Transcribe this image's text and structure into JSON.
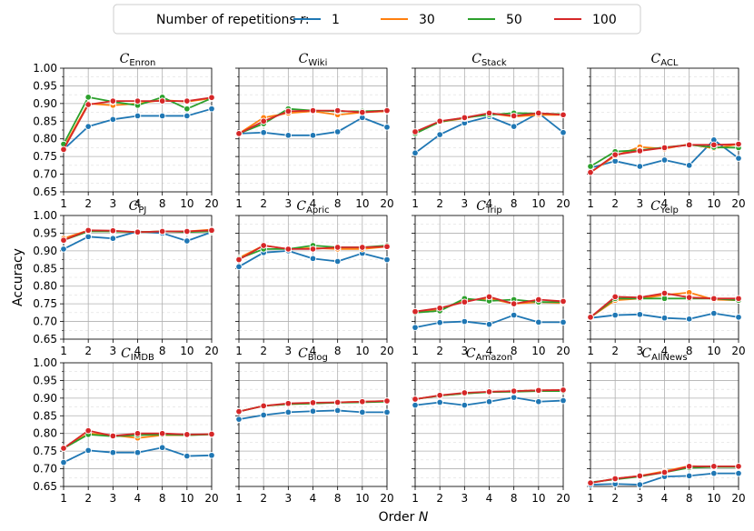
{
  "chart_data": {
    "type": "line",
    "legend": {
      "title": "Number of repetitions r:",
      "placement": "top-center"
    },
    "xlabel": "Order N",
    "ylabel": "Accuracy",
    "x": [
      "1",
      "2",
      "3",
      "4",
      "8",
      "10",
      "20"
    ],
    "ylim": [
      0.65,
      1.0
    ],
    "yticks": [
      "0.65",
      "0.70",
      "0.75",
      "0.80",
      "0.85",
      "0.90",
      "0.95",
      "1.00"
    ],
    "grid": true,
    "series_meta": [
      {
        "name": "1",
        "color": "#1f77b4"
      },
      {
        "name": "30",
        "color": "#ff7f0e"
      },
      {
        "name": "50",
        "color": "#2ca02c"
      },
      {
        "name": "100",
        "color": "#d62728"
      }
    ],
    "panels": [
      {
        "title": "C",
        "sub": "Enron",
        "series": [
          [
            0.77,
            0.835,
            0.855,
            0.865,
            0.865,
            0.865,
            0.885
          ],
          [
            0.775,
            0.9,
            0.895,
            0.9,
            0.91,
            0.905,
            0.915
          ],
          [
            0.785,
            0.918,
            0.905,
            0.895,
            0.918,
            0.885,
            0.915
          ],
          [
            0.77,
            0.897,
            0.907,
            0.907,
            0.907,
            0.907,
            0.917
          ]
        ]
      },
      {
        "title": "C",
        "sub": "Wiki",
        "series": [
          [
            0.815,
            0.818,
            0.81,
            0.81,
            0.82,
            0.86,
            0.833
          ],
          [
            0.815,
            0.86,
            0.873,
            0.878,
            0.868,
            0.875,
            0.878
          ],
          [
            0.815,
            0.843,
            0.885,
            0.88,
            0.878,
            0.878,
            0.88
          ],
          [
            0.815,
            0.85,
            0.878,
            0.88,
            0.88,
            0.875,
            0.88
          ]
        ]
      },
      {
        "title": "C",
        "sub": "Stack",
        "series": [
          [
            0.76,
            0.812,
            0.845,
            0.863,
            0.835,
            0.873,
            0.818
          ],
          [
            0.818,
            0.848,
            0.858,
            0.872,
            0.863,
            0.868,
            0.868
          ],
          [
            0.815,
            0.848,
            0.86,
            0.868,
            0.873,
            0.872,
            0.87
          ],
          [
            0.82,
            0.85,
            0.86,
            0.873,
            0.865,
            0.873,
            0.868
          ]
        ]
      },
      {
        "title": "C",
        "sub": "ACL",
        "series": [
          [
            0.718,
            0.737,
            0.722,
            0.74,
            0.725,
            0.797,
            0.745
          ],
          [
            0.705,
            0.752,
            0.777,
            0.772,
            0.785,
            0.773,
            0.785
          ],
          [
            0.722,
            0.764,
            0.768,
            0.776,
            0.783,
            0.776,
            0.775
          ],
          [
            0.705,
            0.755,
            0.766,
            0.775,
            0.783,
            0.783,
            0.785
          ]
        ]
      },
      {
        "title": "C",
        "sub": "PJ",
        "series": [
          [
            0.905,
            0.94,
            0.935,
            0.955,
            0.95,
            0.928,
            0.953
          ],
          [
            0.935,
            0.958,
            0.955,
            0.953,
            0.955,
            0.955,
            0.96
          ],
          [
            0.93,
            0.955,
            0.955,
            0.953,
            0.955,
            0.953,
            0.955
          ],
          [
            0.93,
            0.958,
            0.957,
            0.953,
            0.955,
            0.955,
            0.958
          ]
        ]
      },
      {
        "title": "C",
        "sub": "Apric",
        "series": [
          [
            0.855,
            0.895,
            0.9,
            0.878,
            0.87,
            0.893,
            0.875
          ],
          [
            0.88,
            0.915,
            0.905,
            0.908,
            0.905,
            0.905,
            0.912
          ],
          [
            0.878,
            0.905,
            0.905,
            0.915,
            0.91,
            0.91,
            0.915
          ],
          [
            0.875,
            0.915,
            0.905,
            0.905,
            0.91,
            0.91,
            0.912
          ]
        ]
      },
      {
        "title": "C",
        "sub": "Trip",
        "series": [
          [
            0.683,
            0.697,
            0.7,
            0.692,
            0.718,
            0.698,
            0.698
          ],
          [
            0.728,
            0.732,
            0.76,
            0.765,
            0.75,
            0.755,
            0.752
          ],
          [
            0.725,
            0.73,
            0.765,
            0.758,
            0.762,
            0.755,
            0.755
          ],
          [
            0.728,
            0.738,
            0.755,
            0.77,
            0.75,
            0.762,
            0.757
          ]
        ]
      },
      {
        "title": "C",
        "sub": "Yelp",
        "series": [
          [
            0.71,
            0.718,
            0.72,
            0.71,
            0.707,
            0.723,
            0.712
          ],
          [
            0.712,
            0.76,
            0.765,
            0.775,
            0.782,
            0.762,
            0.76
          ],
          [
            0.712,
            0.765,
            0.765,
            0.765,
            0.765,
            0.765,
            0.76
          ],
          [
            0.712,
            0.77,
            0.768,
            0.78,
            0.768,
            0.765,
            0.765
          ]
        ]
      },
      {
        "title": "C",
        "sub": "IMDB",
        "series": [
          [
            0.718,
            0.752,
            0.746,
            0.746,
            0.76,
            0.736,
            0.738
          ],
          [
            0.758,
            0.8,
            0.795,
            0.787,
            0.795,
            0.795,
            0.798
          ],
          [
            0.758,
            0.797,
            0.792,
            0.795,
            0.797,
            0.795,
            0.797
          ],
          [
            0.758,
            0.808,
            0.793,
            0.8,
            0.8,
            0.797,
            0.798
          ]
        ]
      },
      {
        "title": "C",
        "sub": "Blog",
        "series": [
          [
            0.84,
            0.852,
            0.86,
            0.863,
            0.865,
            0.86,
            0.86
          ],
          [
            0.862,
            0.878,
            0.883,
            0.885,
            0.888,
            0.89,
            0.892
          ],
          [
            0.862,
            0.878,
            0.883,
            0.885,
            0.887,
            0.888,
            0.89
          ],
          [
            0.862,
            0.878,
            0.885,
            0.887,
            0.888,
            0.89,
            0.892
          ]
        ]
      },
      {
        "title": "C",
        "sub": "Amazon",
        "series": [
          [
            0.88,
            0.888,
            0.88,
            0.89,
            0.902,
            0.89,
            0.893
          ],
          [
            0.897,
            0.907,
            0.913,
            0.918,
            0.92,
            0.922,
            0.922
          ],
          [
            0.897,
            0.907,
            0.913,
            0.917,
            0.918,
            0.92,
            0.92
          ],
          [
            0.897,
            0.908,
            0.915,
            0.918,
            0.92,
            0.922,
            0.923
          ]
        ]
      },
      {
        "title": "C",
        "sub": "AllNews",
        "series": [
          [
            0.655,
            0.657,
            0.655,
            0.678,
            0.68,
            0.687,
            0.687
          ],
          [
            0.66,
            0.672,
            0.68,
            0.693,
            0.708,
            0.705,
            0.705
          ],
          [
            0.662,
            0.67,
            0.678,
            0.69,
            0.703,
            0.705,
            0.705
          ],
          [
            0.66,
            0.672,
            0.68,
            0.69,
            0.707,
            0.707,
            0.707
          ]
        ]
      }
    ]
  }
}
